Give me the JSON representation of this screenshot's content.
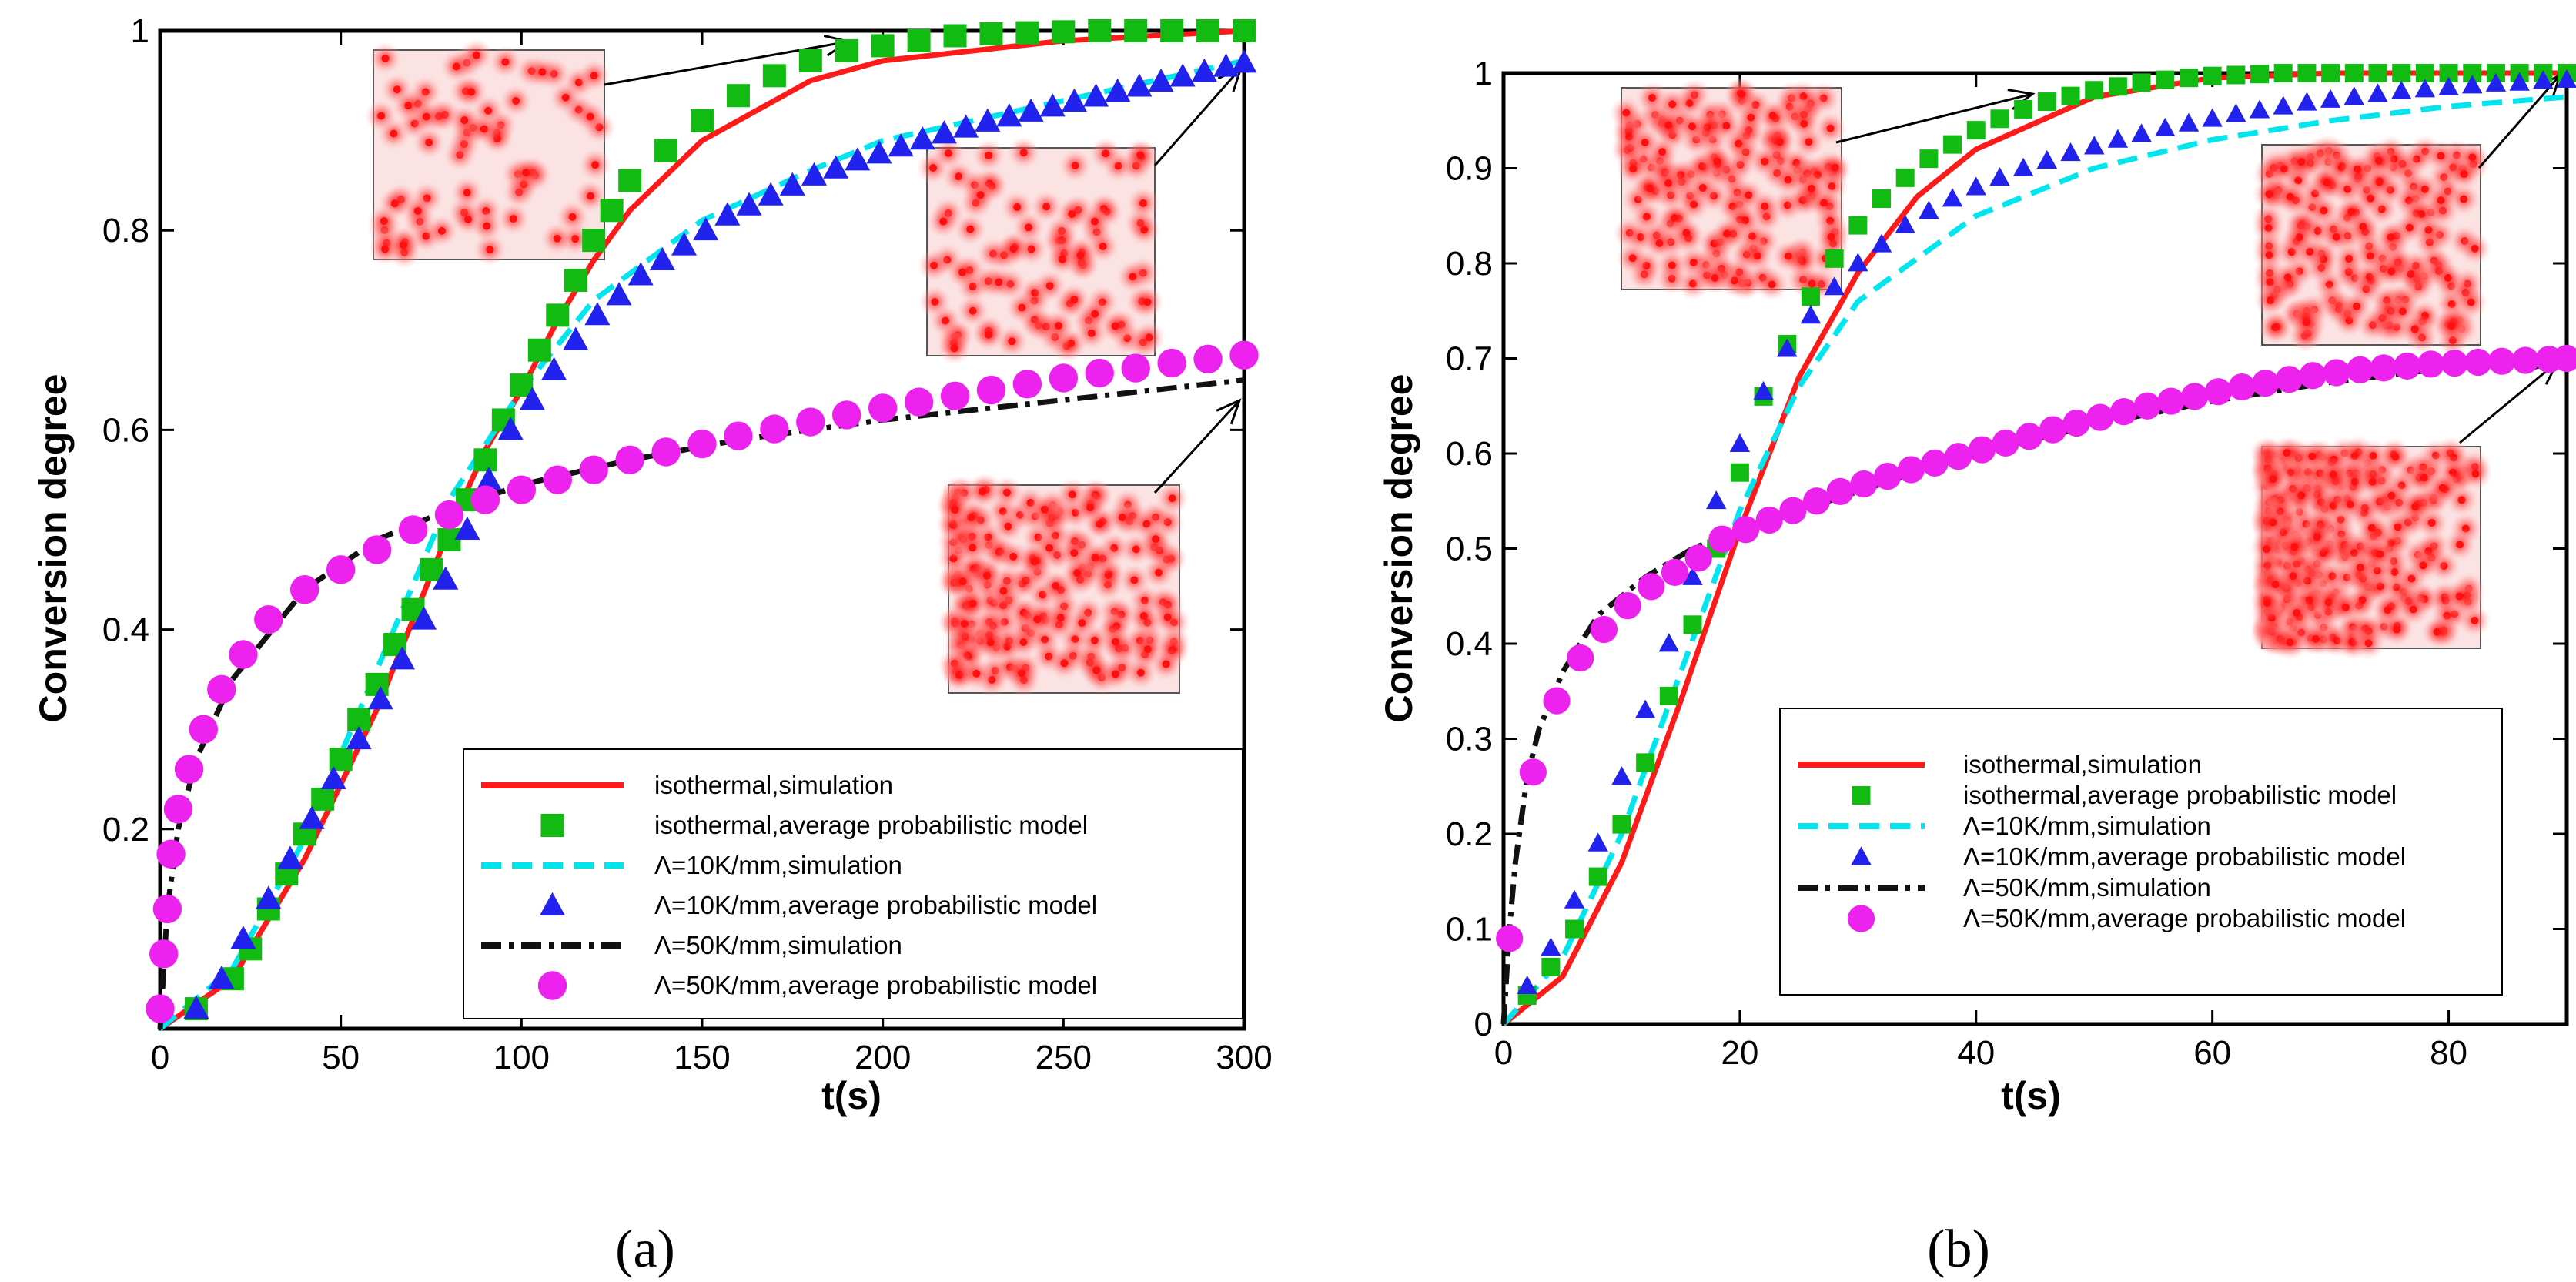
{
  "chart_data": [
    {
      "type": "line",
      "panel_label": "(a)",
      "xlabel": "t(s)",
      "ylabel": "Conversion degree",
      "xlim": [
        0,
        300
      ],
      "ylim": [
        0,
        1
      ],
      "xticks": [
        0,
        50,
        100,
        150,
        200,
        250,
        300
      ],
      "yticks": [
        0.2,
        0.4,
        0.6,
        0.8,
        1
      ],
      "ytick_labels": [
        "0.2",
        "0.4",
        "0.6",
        "0.8",
        "1"
      ],
      "legend_position": "bottom-right",
      "series": [
        {
          "name": "isothermal,simulation",
          "style": "line",
          "dash": "solid",
          "color": "#ff1a1a",
          "x": [
            0,
            20,
            40,
            60,
            70,
            80,
            90,
            100,
            110,
            120,
            130,
            150,
            180,
            200,
            250,
            300
          ],
          "y": [
            0,
            0.05,
            0.17,
            0.32,
            0.41,
            0.5,
            0.58,
            0.64,
            0.71,
            0.77,
            0.82,
            0.89,
            0.95,
            0.97,
            0.99,
            1.0
          ]
        },
        {
          "name": "isothermal,average probabilistic model",
          "style": "marker",
          "marker": "square",
          "color": "#11bb11",
          "x": [
            10,
            20,
            25,
            30,
            35,
            40,
            45,
            50,
            55,
            60,
            65,
            70,
            75,
            80,
            85,
            90,
            95,
            100,
            105,
            110,
            115,
            120,
            125,
            130,
            140,
            150,
            160,
            170,
            180,
            190,
            200,
            210,
            220,
            230,
            240,
            250,
            260,
            270,
            280,
            290,
            300
          ],
          "y": [
            0.02,
            0.05,
            0.08,
            0.12,
            0.155,
            0.195,
            0.23,
            0.27,
            0.31,
            0.345,
            0.385,
            0.42,
            0.46,
            0.49,
            0.53,
            0.57,
            0.61,
            0.645,
            0.68,
            0.715,
            0.75,
            0.79,
            0.82,
            0.85,
            0.88,
            0.91,
            0.935,
            0.955,
            0.97,
            0.98,
            0.985,
            0.99,
            0.995,
            0.997,
            0.998,
            0.999,
            1.0,
            1.0,
            1.0,
            1.0,
            1.0
          ]
        },
        {
          "name": "Λ=10K/mm,simulation",
          "style": "line",
          "dash": "dashed",
          "color": "#00e5ee",
          "x": [
            0,
            20,
            40,
            60,
            80,
            100,
            120,
            150,
            180,
            200,
            250,
            300
          ],
          "y": [
            0,
            0.06,
            0.19,
            0.36,
            0.53,
            0.64,
            0.73,
            0.81,
            0.86,
            0.89,
            0.93,
            0.97
          ]
        },
        {
          "name": "Λ=10K/mm,average probabilistic model",
          "style": "marker",
          "marker": "triangle",
          "color": "#2222ee",
          "x": [
            10,
            17,
            23,
            30,
            36,
            42,
            48,
            55,
            61,
            67,
            73,
            79,
            85,
            91,
            97,
            103,
            109,
            115,
            121,
            127,
            133,
            139,
            145,
            151,
            157,
            163,
            169,
            175,
            181,
            187,
            193,
            199,
            205,
            211,
            217,
            223,
            229,
            235,
            241,
            247,
            253,
            259,
            265,
            271,
            277,
            283,
            289,
            295,
            300
          ],
          "y": [
            0.02,
            0.05,
            0.09,
            0.13,
            0.17,
            0.21,
            0.25,
            0.29,
            0.33,
            0.37,
            0.41,
            0.45,
            0.5,
            0.55,
            0.6,
            0.63,
            0.66,
            0.69,
            0.715,
            0.735,
            0.755,
            0.77,
            0.785,
            0.8,
            0.815,
            0.825,
            0.835,
            0.845,
            0.855,
            0.862,
            0.87,
            0.877,
            0.884,
            0.891,
            0.897,
            0.903,
            0.909,
            0.914,
            0.919,
            0.924,
            0.929,
            0.934,
            0.939,
            0.944,
            0.949,
            0.954,
            0.959,
            0.964,
            0.968
          ]
        },
        {
          "name": "Λ=50K/mm,simulation",
          "style": "line",
          "dash": "dashdot",
          "color": "#111111",
          "x": [
            0,
            2,
            5,
            10,
            20,
            40,
            60,
            80,
            100,
            130,
            160,
            200,
            250,
            300
          ],
          "y": [
            0,
            0.12,
            0.2,
            0.27,
            0.35,
            0.44,
            0.49,
            0.52,
            0.545,
            0.57,
            0.59,
            0.61,
            0.63,
            0.65
          ]
        },
        {
          "name": "Λ=50K/mm,average probabilistic model",
          "style": "marker",
          "marker": "circle",
          "color": "#ee22ee",
          "x": [
            0,
            1,
            2,
            3,
            5,
            8,
            12,
            17,
            23,
            30,
            40,
            50,
            60,
            70,
            80,
            90,
            100,
            110,
            120,
            130,
            140,
            150,
            160,
            170,
            180,
            190,
            200,
            210,
            220,
            230,
            240,
            250,
            260,
            270,
            280,
            290,
            300
          ],
          "y": [
            0.02,
            0.075,
            0.12,
            0.175,
            0.22,
            0.26,
            0.3,
            0.34,
            0.375,
            0.41,
            0.44,
            0.46,
            0.48,
            0.5,
            0.515,
            0.53,
            0.54,
            0.55,
            0.56,
            0.57,
            0.578,
            0.586,
            0.594,
            0.601,
            0.608,
            0.615,
            0.622,
            0.628,
            0.634,
            0.64,
            0.646,
            0.652,
            0.657,
            0.662,
            0.667,
            0.671,
            0.675
          ]
        }
      ]
    },
    {
      "type": "line",
      "panel_label": "(b)",
      "xlabel": "t(s)",
      "ylabel": "Conversion degree",
      "xlim": [
        0,
        90
      ],
      "ylim": [
        0,
        1
      ],
      "xticks": [
        0,
        20,
        40,
        60,
        80
      ],
      "yticks": [
        0,
        0.1,
        0.2,
        0.3,
        0.4,
        0.5,
        0.6,
        0.7,
        0.8,
        0.9,
        1
      ],
      "ytick_labels": [
        "0",
        "0.1",
        "0.2",
        "0.3",
        "0.4",
        "0.5",
        "0.6",
        "0.7",
        "0.8",
        "0.9",
        "1"
      ],
      "legend_position": "bottom-right",
      "series": [
        {
          "name": "isothermal,simulation",
          "style": "line",
          "dash": "solid",
          "color": "#ff1a1a",
          "x": [
            0,
            5,
            10,
            15,
            20,
            25,
            30,
            35,
            40,
            50,
            60,
            70,
            90
          ],
          "y": [
            0,
            0.05,
            0.17,
            0.34,
            0.52,
            0.68,
            0.79,
            0.87,
            0.92,
            0.975,
            0.995,
            1.0,
            1.0
          ]
        },
        {
          "name": "isothermal,average probabilistic model",
          "style": "marker",
          "marker": "square",
          "color": "#11bb11",
          "x": [
            2,
            4,
            6,
            8,
            10,
            12,
            14,
            16,
            18,
            20,
            22,
            24,
            26,
            28,
            30,
            32,
            34,
            36,
            38,
            40,
            42,
            44,
            46,
            48,
            50,
            52,
            54,
            56,
            58,
            60,
            62,
            64,
            66,
            68,
            70,
            72,
            74,
            76,
            78,
            80,
            82,
            84,
            86,
            88,
            90
          ],
          "y": [
            0.03,
            0.06,
            0.1,
            0.155,
            0.21,
            0.275,
            0.345,
            0.42,
            0.5,
            0.58,
            0.66,
            0.715,
            0.765,
            0.805,
            0.84,
            0.868,
            0.89,
            0.91,
            0.925,
            0.94,
            0.952,
            0.962,
            0.97,
            0.976,
            0.982,
            0.986,
            0.99,
            0.993,
            0.995,
            0.997,
            0.998,
            0.999,
            1.0,
            1.0,
            1.0,
            1.0,
            1.0,
            1.0,
            1.0,
            1.0,
            1.0,
            1.0,
            1.0,
            1.0,
            1.0
          ]
        },
        {
          "name": "Λ=10K/mm,simulation",
          "style": "line",
          "dash": "dashed",
          "color": "#00e5ee",
          "x": [
            0,
            5,
            10,
            15,
            20,
            25,
            30,
            40,
            50,
            60,
            70,
            80,
            90
          ],
          "y": [
            0,
            0.07,
            0.2,
            0.37,
            0.54,
            0.67,
            0.76,
            0.85,
            0.9,
            0.93,
            0.95,
            0.965,
            0.975
          ]
        },
        {
          "name": "Λ=10K/mm,average probabilistic model",
          "style": "marker",
          "marker": "triangle",
          "color": "#2222ee",
          "x": [
            2,
            4,
            6,
            8,
            10,
            12,
            14,
            16,
            18,
            20,
            22,
            24,
            26,
            28,
            30,
            32,
            34,
            36,
            38,
            40,
            42,
            44,
            46,
            48,
            50,
            52,
            54,
            56,
            58,
            60,
            62,
            64,
            66,
            68,
            70,
            72,
            74,
            76,
            78,
            80,
            82,
            84,
            86,
            88,
            90
          ],
          "y": [
            0.04,
            0.08,
            0.13,
            0.19,
            0.26,
            0.33,
            0.4,
            0.47,
            0.55,
            0.61,
            0.665,
            0.71,
            0.745,
            0.775,
            0.8,
            0.82,
            0.84,
            0.855,
            0.868,
            0.88,
            0.89,
            0.9,
            0.908,
            0.916,
            0.923,
            0.93,
            0.936,
            0.942,
            0.947,
            0.952,
            0.957,
            0.961,
            0.965,
            0.969,
            0.972,
            0.975,
            0.978,
            0.981,
            0.983,
            0.985,
            0.987,
            0.989,
            0.99,
            0.992,
            0.993
          ]
        },
        {
          "name": "Λ=50K/mm,simulation",
          "style": "line",
          "dash": "dashdot",
          "color": "#111111",
          "x": [
            0,
            0.5,
            1,
            2,
            3,
            5,
            8,
            12,
            16,
            20,
            30,
            40,
            50,
            60,
            70,
            80,
            90
          ],
          "y": [
            0,
            0.1,
            0.17,
            0.26,
            0.31,
            0.37,
            0.43,
            0.47,
            0.5,
            0.52,
            0.56,
            0.6,
            0.63,
            0.655,
            0.675,
            0.69,
            0.7
          ]
        },
        {
          "name": "Λ=50K/mm,average probabilistic model",
          "style": "marker",
          "marker": "circle",
          "color": "#ee22ee",
          "x": [
            0.5,
            2.5,
            4.5,
            6.5,
            8.5,
            10.5,
            12.5,
            14.5,
            16.5,
            18.5,
            20.5,
            22.5,
            24.5,
            26.5,
            28.5,
            30.5,
            32.5,
            34.5,
            36.5,
            38.5,
            40.5,
            42.5,
            44.5,
            46.5,
            48.5,
            50.5,
            52.5,
            54.5,
            56.5,
            58.5,
            60.5,
            62.5,
            64.5,
            66.5,
            68.5,
            70.5,
            72.5,
            74.5,
            76.5,
            78.5,
            80.5,
            82.5,
            84.5,
            86.5,
            88.5,
            90
          ],
          "y": [
            0.09,
            0.265,
            0.34,
            0.385,
            0.415,
            0.44,
            0.46,
            0.475,
            0.49,
            0.51,
            0.52,
            0.53,
            0.54,
            0.55,
            0.56,
            0.568,
            0.576,
            0.583,
            0.59,
            0.597,
            0.604,
            0.611,
            0.618,
            0.625,
            0.632,
            0.638,
            0.644,
            0.65,
            0.655,
            0.66,
            0.665,
            0.67,
            0.674,
            0.678,
            0.682,
            0.685,
            0.688,
            0.69,
            0.692,
            0.694,
            0.695,
            0.696,
            0.697,
            0.698,
            0.699,
            0.7
          ]
        }
      ]
    }
  ]
}
